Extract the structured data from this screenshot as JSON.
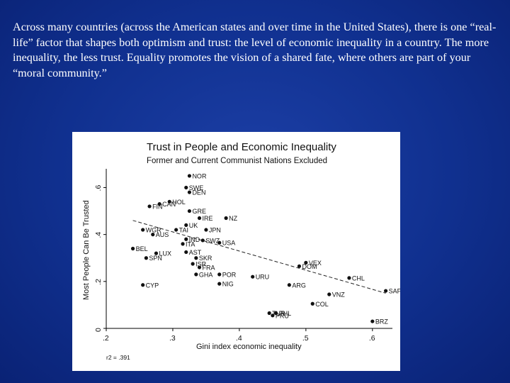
{
  "slide": {
    "text": "Across many countries (across the American states and over time in the United States), there is one “real-life” factor that shapes both optimism and trust: the level of economic inequality in a country.  The more inequality, the less trust.  Equality promotes the vision of a shared fate, where others are part of your “moral community.”",
    "background_color": "#10308f"
  },
  "chart_data": {
    "type": "scatter",
    "title": "Trust in People and Economic Inequality",
    "subtitle": "Former and Current Communist Nations Excluded",
    "xlabel": "Gini index economic inequality",
    "ylabel": "Most People Can Be Trusted",
    "xlim": [
      0.2,
      0.63
    ],
    "ylim": [
      0,
      0.68
    ],
    "x_ticks": [
      {
        "value": 0.2,
        "label": ".2"
      },
      {
        "value": 0.3,
        "label": ".3"
      },
      {
        "value": 0.4,
        "label": ".4"
      },
      {
        "value": 0.5,
        "label": ".5"
      },
      {
        "value": 0.6,
        "label": ".6"
      }
    ],
    "y_ticks": [
      {
        "value": 0,
        "label": "0"
      },
      {
        "value": 0.2,
        "label": ".2"
      },
      {
        "value": 0.4,
        "label": ".4"
      },
      {
        "value": 0.6,
        "label": ".6"
      }
    ],
    "grid": false,
    "legend": "none",
    "fit_line": {
      "x": [
        0.24,
        0.62
      ],
      "y": [
        0.46,
        0.15
      ]
    },
    "note": "r2 = .391",
    "points": [
      {
        "label": "NOR",
        "x": 0.325,
        "y": 0.65
      },
      {
        "label": "SWE",
        "x": 0.32,
        "y": 0.6
      },
      {
        "label": "DEN",
        "x": 0.325,
        "y": 0.58
      },
      {
        "label": "FIN",
        "x": 0.265,
        "y": 0.52
      },
      {
        "label": "CAN",
        "x": 0.28,
        "y": 0.53
      },
      {
        "label": "HOL",
        "x": 0.295,
        "y": 0.54
      },
      {
        "label": "GRE",
        "x": 0.325,
        "y": 0.5
      },
      {
        "label": "IRE",
        "x": 0.34,
        "y": 0.47
      },
      {
        "label": "NZ",
        "x": 0.38,
        "y": 0.47
      },
      {
        "label": "UK",
        "x": 0.32,
        "y": 0.44
      },
      {
        "label": "TAI",
        "x": 0.305,
        "y": 0.42
      },
      {
        "label": "JPN",
        "x": 0.35,
        "y": 0.42
      },
      {
        "label": "WGR",
        "x": 0.255,
        "y": 0.42
      },
      {
        "label": "AUS",
        "x": 0.27,
        "y": 0.4
      },
      {
        "label": "IND",
        "x": 0.32,
        "y": 0.38
      },
      {
        "label": "SWZ",
        "x": 0.345,
        "y": 0.375
      },
      {
        "label": "ITA",
        "x": 0.315,
        "y": 0.36
      },
      {
        "label": "USA",
        "x": 0.37,
        "y": 0.365
      },
      {
        "label": "BEL",
        "x": 0.24,
        "y": 0.34
      },
      {
        "label": "LUX",
        "x": 0.275,
        "y": 0.32
      },
      {
        "label": "SPN",
        "x": 0.26,
        "y": 0.3
      },
      {
        "label": "AST",
        "x": 0.32,
        "y": 0.325
      },
      {
        "label": "SKR",
        "x": 0.335,
        "y": 0.3
      },
      {
        "label": "ISR",
        "x": 0.33,
        "y": 0.275
      },
      {
        "label": "FRA",
        "x": 0.34,
        "y": 0.26
      },
      {
        "label": "POR",
        "x": 0.37,
        "y": 0.23
      },
      {
        "label": "GHA",
        "x": 0.335,
        "y": 0.23
      },
      {
        "label": "NIG",
        "x": 0.37,
        "y": 0.19
      },
      {
        "label": "URU",
        "x": 0.42,
        "y": 0.22
      },
      {
        "label": "CYP",
        "x": 0.255,
        "y": 0.185
      },
      {
        "label": "VEX",
        "x": 0.5,
        "y": 0.28
      },
      {
        "label": "DOM",
        "x": 0.49,
        "y": 0.265
      },
      {
        "label": "CHL",
        "x": 0.565,
        "y": 0.215
      },
      {
        "label": "ARG",
        "x": 0.475,
        "y": 0.185
      },
      {
        "label": "SAF",
        "x": 0.62,
        "y": 0.16
      },
      {
        "label": "VNZ",
        "x": 0.535,
        "y": 0.145
      },
      {
        "label": "COL",
        "x": 0.51,
        "y": 0.105
      },
      {
        "label": "TUR",
        "x": 0.445,
        "y": 0.065
      },
      {
        "label": "PHL",
        "x": 0.455,
        "y": 0.065
      },
      {
        "label": "PRU",
        "x": 0.45,
        "y": 0.055
      },
      {
        "label": "BRZ",
        "x": 0.6,
        "y": 0.03
      }
    ]
  }
}
